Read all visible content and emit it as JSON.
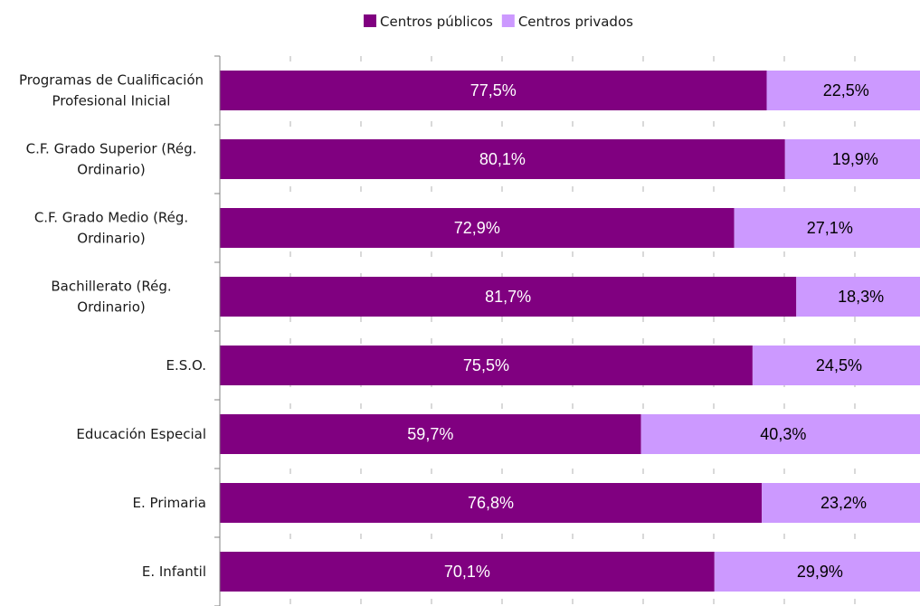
{
  "chart_data": {
    "type": "bar",
    "orientation": "horizontal",
    "stacked": true,
    "percent_stacked": true,
    "categories": [
      "Programas de Cualificación Profesional Inicial",
      "C.F. Grado Superior (Rég. Ordinario)",
      "C.F. Grado Medio (Rég. Ordinario)",
      "Bachillerato (Rég. Ordinario)",
      "E.S.O.",
      "Educación Especial",
      "E. Primaria",
      "E. Infantil"
    ],
    "series": [
      {
        "name": "Centros públicos",
        "values": [
          77.5,
          80.1,
          72.9,
          81.7,
          75.5,
          59.7,
          76.8,
          70.1
        ],
        "labels": [
          "77,5%",
          "80,1%",
          "72,9%",
          "81,7%",
          "75,5%",
          "59,7%",
          "76,8%",
          "70,1%"
        ],
        "color": "#800080",
        "label_color": "#ffffff"
      },
      {
        "name": "Centros privados",
        "values": [
          22.5,
          19.9,
          27.1,
          18.3,
          24.5,
          40.3,
          23.2,
          29.9
        ],
        "labels": [
          "22,5%",
          "19,9%",
          "27,1%",
          "18,3%",
          "24,5%",
          "40,3%",
          "23,2%",
          "29,9%"
        ],
        "color": "#cc99ff",
        "label_color": "#000000"
      }
    ],
    "xlim": [
      0,
      100
    ],
    "title": "",
    "xlabel": "",
    "ylabel": "",
    "grid": "vertical dashed",
    "legend_position": "top"
  }
}
